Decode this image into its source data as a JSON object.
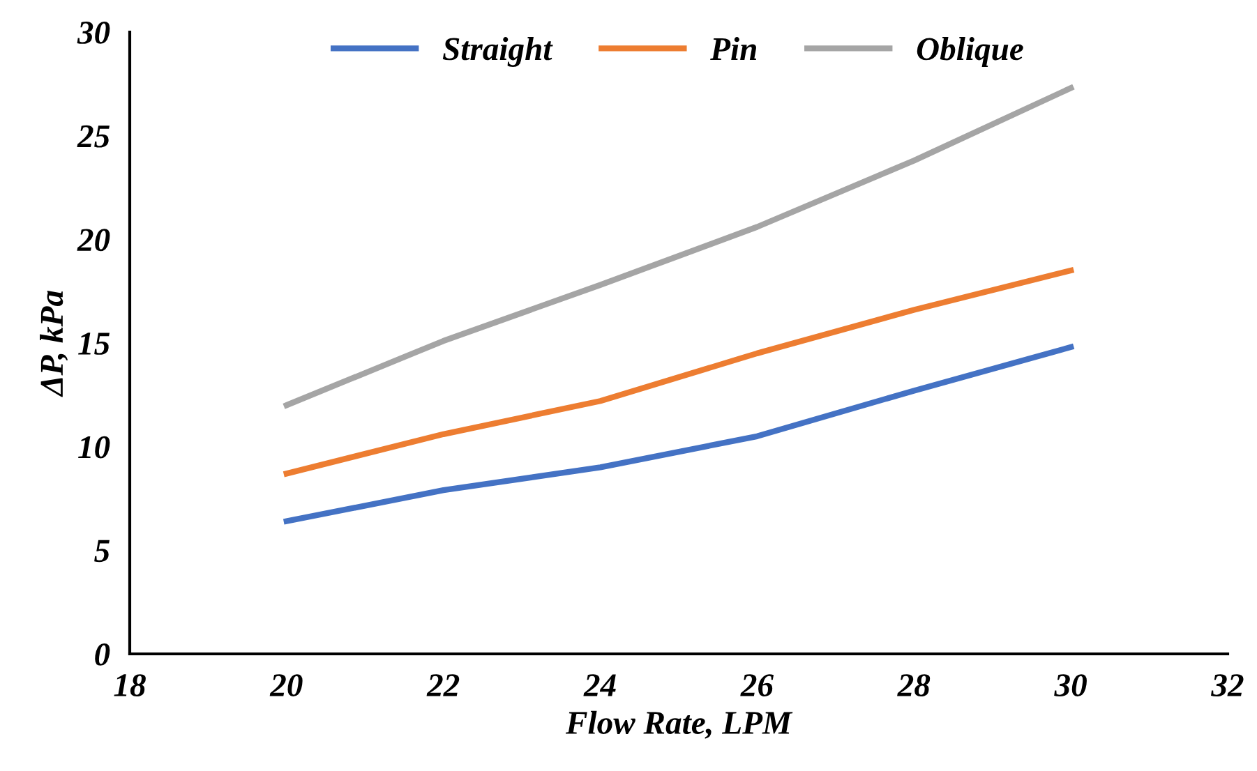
{
  "chart_data": {
    "type": "line",
    "xlabel": "Flow Rate, LPM",
    "ylabel": "ΔP, kPa",
    "x": [
      20,
      22,
      24,
      26,
      28,
      30
    ],
    "series": [
      {
        "name": "Straight",
        "color": "#4472c4",
        "values": [
          6.4,
          7.9,
          9.0,
          10.5,
          12.7,
          14.8
        ]
      },
      {
        "name": "Pin",
        "color": "#ed7d31",
        "values": [
          8.7,
          10.6,
          12.2,
          14.5,
          16.6,
          18.5
        ]
      },
      {
        "name": "Oblique",
        "color": "#a5a5a5",
        "values": [
          12.0,
          15.1,
          17.8,
          20.6,
          23.8,
          27.3
        ]
      }
    ],
    "xlim": [
      18,
      32
    ],
    "xticks": [
      18,
      20,
      22,
      24,
      26,
      28,
      30,
      32
    ],
    "ylim": [
      0,
      30
    ],
    "yticks": [
      0,
      5,
      10,
      15,
      20,
      25,
      30
    ],
    "grid": false,
    "legend": "top",
    "marker": "none",
    "line_style": "solid"
  }
}
